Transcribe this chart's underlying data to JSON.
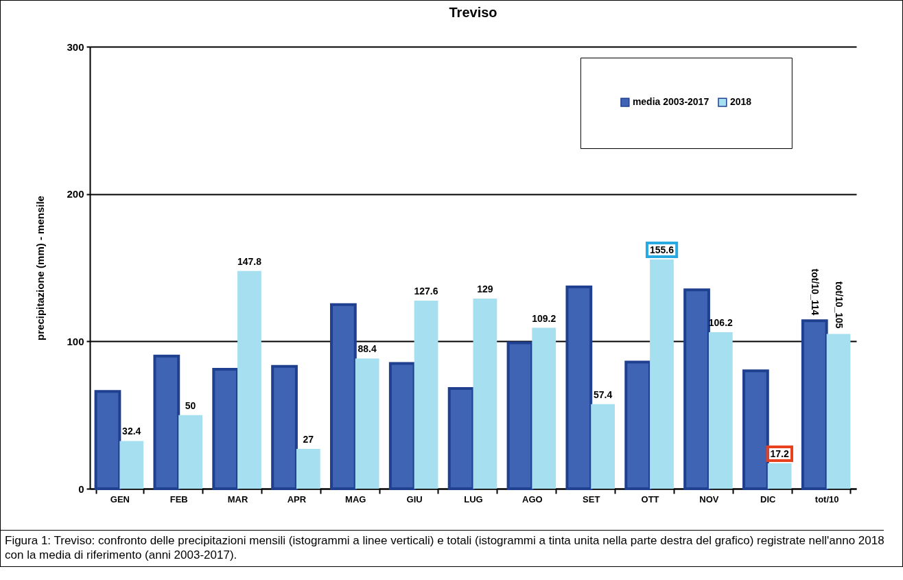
{
  "chart_data": {
    "type": "bar",
    "title": "Treviso",
    "ylabel": "precipitazione (mm) - mensile",
    "categories": [
      "GEN",
      "FEB",
      "MAR",
      "APR",
      "MAG",
      "GIU",
      "LUG",
      "AGO",
      "SET",
      "OTT",
      "NOV",
      "DIC",
      "tot/10"
    ],
    "series": [
      {
        "name": "media 2003-2017",
        "color": "#3f64b4",
        "values": [
          66,
          90,
          81,
          83,
          125,
          85,
          68,
          99,
          137,
          86,
          135,
          80,
          114
        ],
        "value_labels": [
          null,
          null,
          null,
          null,
          null,
          null,
          null,
          null,
          null,
          null,
          null,
          null,
          "tot/10_114"
        ]
      },
      {
        "name": "2018",
        "color": "#a6dff0",
        "values": [
          32.4,
          50,
          147.8,
          27,
          88.4,
          127.6,
          129,
          109.2,
          57.4,
          155.6,
          106.2,
          17.2,
          105
        ],
        "value_labels": [
          "32.4",
          "50",
          "147.8",
          "27",
          "88.4",
          "127.6",
          "129",
          "109.2",
          "57.4",
          "155.6",
          "106.2",
          "17.2",
          "tot/10_105"
        ]
      }
    ],
    "ylim": [
      0,
      300
    ],
    "yticks": [
      0,
      100,
      200,
      300
    ],
    "grid": "y",
    "legend": "top right",
    "annotations": [
      "Figura 1: Treviso: confronto delle precipitazioni mensili (istogrammi a linee verticali) e totali (istogrammi a tinta unita nella parte destra del grafico) registrate nell'anno 2018 con la media di riferimento (anni 2003-2017)."
    ]
  }
}
